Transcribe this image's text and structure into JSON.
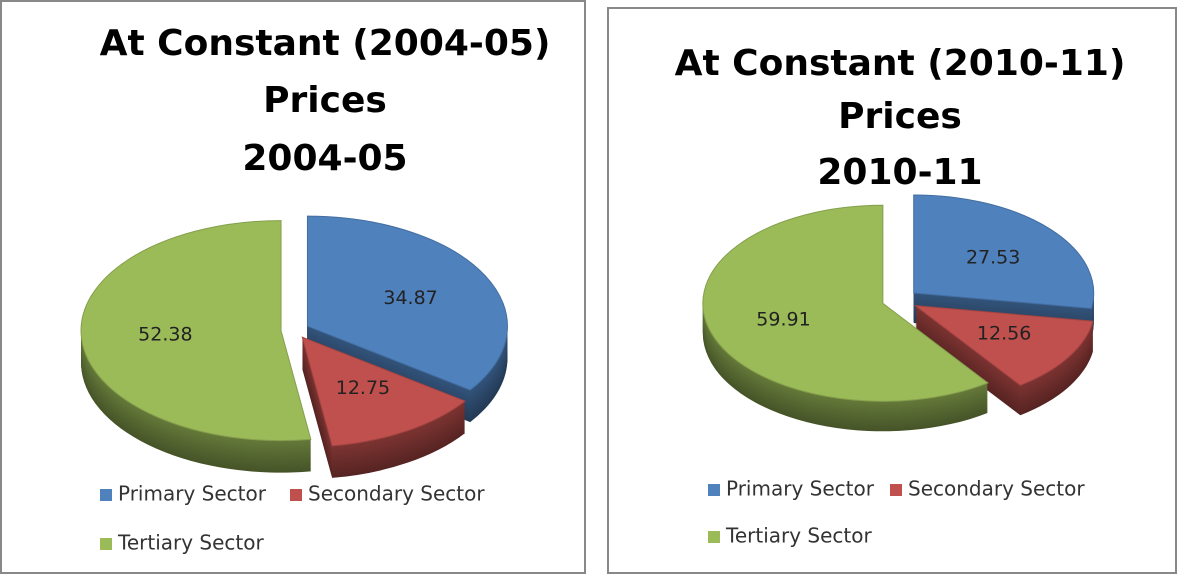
{
  "chart_data": [
    {
      "type": "pie",
      "title": [
        "At Constant (2004-05)",
        "Prices",
        "2004-05"
      ],
      "categories": [
        "Primary Sector",
        "Secondary Sector",
        "Tertiary Sector"
      ],
      "values": [
        34.87,
        12.75,
        52.38
      ],
      "colors": [
        "#4f81bd",
        "#c0504d",
        "#9bbb59"
      ]
    },
    {
      "type": "pie",
      "title": [
        "At Constant (2010-11)",
        "Prices",
        "2010-11"
      ],
      "categories": [
        "Primary Sector",
        "Secondary Sector",
        "Tertiary Sector"
      ],
      "values": [
        27.53,
        12.56,
        59.91
      ],
      "colors": [
        "#4f81bd",
        "#c0504d",
        "#9bbb59"
      ]
    }
  ]
}
